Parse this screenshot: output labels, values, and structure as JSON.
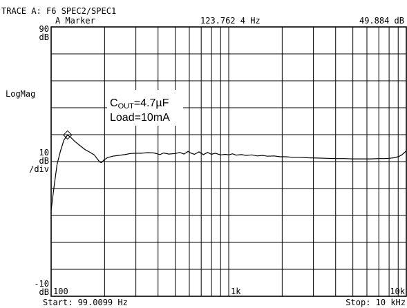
{
  "header": {
    "trace_label": "TRACE A: F6 SPEC2/SPEC1",
    "marker_label": "A Marker",
    "marker_freq": "123.762 4 Hz",
    "marker_value": "49.884 dB"
  },
  "left_axis": {
    "top_value": "90",
    "top_unit": "dB",
    "format": "LogMag",
    "scale_value": "10",
    "scale_unit": "dB",
    "scale_per": "/div",
    "bottom_value": "-10",
    "bottom_unit": "dB"
  },
  "annotation": {
    "c_prefix": "C",
    "c_sub": "OUT",
    "c_suffix": "=4.7µF",
    "load": "Load=10mA"
  },
  "footer": {
    "start": "Start: 99.0099 Hz",
    "stop": "Stop: 10 kHz"
  },
  "chart_data": {
    "type": "line",
    "x_scale": "log",
    "xlim": [
      100,
      10000
    ],
    "ylim": [
      -10,
      90
    ],
    "ytick_step": 10,
    "grid": true,
    "xtick_labels": [
      {
        "x": 100,
        "label": "100"
      },
      {
        "x": 1000,
        "label": "1k"
      },
      {
        "x": 10000,
        "label": "10k"
      }
    ],
    "marker": {
      "x": 123.7624,
      "y": 49.884
    },
    "series": [
      {
        "color": "#000000",
        "points": [
          [
            100,
            22
          ],
          [
            104,
            31
          ],
          [
            108,
            39
          ],
          [
            113,
            44
          ],
          [
            118,
            48
          ],
          [
            123.76,
            49.9
          ],
          [
            129,
            49
          ],
          [
            136,
            47.5
          ],
          [
            145,
            46
          ],
          [
            155,
            44.5
          ],
          [
            165,
            43.5
          ],
          [
            175,
            42.5
          ],
          [
            182,
            41
          ],
          [
            188,
            39.8
          ],
          [
            192,
            39.6
          ],
          [
            198,
            40.6
          ],
          [
            208,
            41.5
          ],
          [
            222,
            42
          ],
          [
            240,
            42.3
          ],
          [
            260,
            42.6
          ],
          [
            280,
            43
          ],
          [
            300,
            43.1
          ],
          [
            320,
            43.1
          ],
          [
            350,
            43.3
          ],
          [
            380,
            43.2
          ],
          [
            410,
            42.6
          ],
          [
            430,
            43.2
          ],
          [
            460,
            42.8
          ],
          [
            500,
            43
          ],
          [
            530,
            43.4
          ],
          [
            560,
            42.8
          ],
          [
            590,
            43.8
          ],
          [
            610,
            43.2
          ],
          [
            640,
            42.7
          ],
          [
            680,
            43.6
          ],
          [
            720,
            42.6
          ],
          [
            760,
            43.4
          ],
          [
            800,
            42.7
          ],
          [
            840,
            43.1
          ],
          [
            900,
            42.5
          ],
          [
            960,
            42.7
          ],
          [
            1000,
            42.5
          ],
          [
            1050,
            42.9
          ],
          [
            1100,
            42.4
          ],
          [
            1180,
            42.6
          ],
          [
            1250,
            42.3
          ],
          [
            1350,
            42.5
          ],
          [
            1450,
            42.1
          ],
          [
            1550,
            42.3
          ],
          [
            1650,
            42
          ],
          [
            1800,
            42.1
          ],
          [
            1950,
            41.8
          ],
          [
            2100,
            41.8
          ],
          [
            2300,
            41.6
          ],
          [
            2500,
            41.6
          ],
          [
            2800,
            41.4
          ],
          [
            3200,
            41.3
          ],
          [
            3600,
            41.2
          ],
          [
            4000,
            41.1
          ],
          [
            4500,
            41.1
          ],
          [
            5000,
            41
          ],
          [
            5600,
            41
          ],
          [
            6300,
            41
          ],
          [
            7000,
            41.1
          ],
          [
            7500,
            41.1
          ],
          [
            8000,
            41.2
          ],
          [
            8500,
            41.4
          ],
          [
            9000,
            41.8
          ],
          [
            9400,
            42.4
          ],
          [
            9700,
            43.2
          ],
          [
            10000,
            44
          ]
        ]
      }
    ]
  }
}
